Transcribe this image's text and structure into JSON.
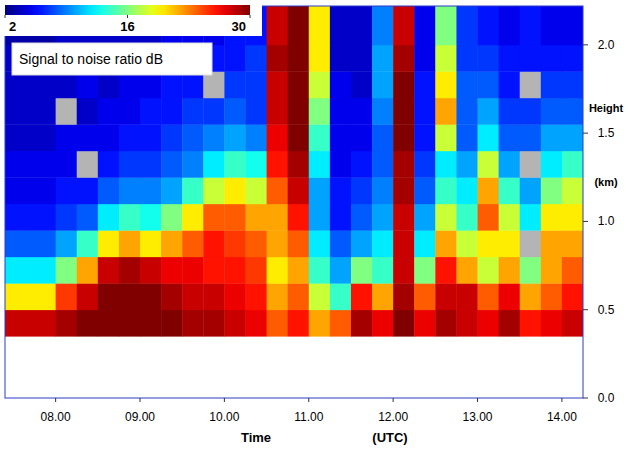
{
  "chart_data": {
    "type": "heatmap",
    "title": "Signal to noise ratio dB",
    "x_label": "Time",
    "x_unit_label": "(UTC)",
    "y_label": "Height",
    "y_unit_label": "(km)",
    "xlim": [
      7.4,
      14.25
    ],
    "xticks": [
      {
        "value": 8,
        "label": "08.00"
      },
      {
        "value": 9,
        "label": "09.00"
      },
      {
        "value": 10,
        "label": "10.00"
      },
      {
        "value": 11,
        "label": "11.00"
      },
      {
        "value": 12,
        "label": "12.00"
      },
      {
        "value": 13,
        "label": "13.00"
      },
      {
        "value": 14,
        "label": "14.00"
      }
    ],
    "ylim": [
      0,
      2.22
    ],
    "yticks": [
      {
        "value": 0,
        "label": "0.0"
      },
      {
        "value": 0.5,
        "label": "0.5"
      },
      {
        "value": 1,
        "label": "1.0"
      },
      {
        "value": 1.5,
        "label": "1.5"
      },
      {
        "value": 2,
        "label": "2.0"
      }
    ],
    "x_edges": [
      7.4,
      8.0,
      8.25,
      8.5,
      8.75,
      9.0,
      9.25,
      9.5,
      9.75,
      10.0,
      10.25,
      10.5,
      10.75,
      11.0,
      11.25,
      11.5,
      11.75,
      12.0,
      12.25,
      12.5,
      12.75,
      13.0,
      13.25,
      13.5,
      13.75,
      14.0,
      14.25
    ],
    "y_edges": [
      0.35,
      0.5,
      0.65,
      0.8,
      0.95,
      1.1,
      1.25,
      1.4,
      1.55,
      1.7,
      1.85,
      2.0,
      2.22
    ],
    "cells": [
      [
        28,
        29,
        30,
        30,
        30,
        30,
        30,
        29,
        29,
        28,
        27,
        24,
        26,
        22,
        24,
        29,
        27,
        30,
        27,
        29,
        28,
        27,
        29,
        26,
        27,
        28
      ],
      [
        20,
        25,
        28,
        30,
        30,
        30,
        29,
        28,
        28,
        27,
        26,
        22,
        24,
        18,
        14,
        26,
        22,
        29,
        24,
        28,
        28,
        24,
        27,
        22,
        24,
        26
      ],
      [
        12,
        16,
        22,
        28,
        29,
        28,
        27,
        27,
        26,
        26,
        25,
        20,
        22,
        14,
        10,
        16,
        14,
        28,
        16,
        26,
        22,
        18,
        22,
        16,
        22,
        24
      ],
      [
        8,
        10,
        14,
        20,
        22,
        20,
        22,
        24,
        26,
        25,
        24,
        22,
        24,
        12,
        8,
        10,
        12,
        28,
        12,
        22,
        18,
        20,
        20,
        null,
        22,
        22
      ],
      [
        6,
        7,
        8,
        12,
        14,
        13,
        16,
        20,
        24,
        24,
        22,
        22,
        26,
        10,
        6,
        8,
        10,
        28,
        10,
        18,
        14,
        24,
        18,
        12,
        20,
        20
      ],
      [
        5,
        6,
        6,
        8,
        9,
        9,
        10,
        14,
        18,
        20,
        18,
        24,
        28,
        10,
        6,
        7,
        9,
        29,
        8,
        14,
        12,
        22,
        14,
        10,
        16,
        18
      ],
      [
        5,
        5,
        null,
        6,
        7,
        7,
        8,
        9,
        12,
        14,
        13,
        26,
        29,
        12,
        5,
        6,
        8,
        29,
        7,
        12,
        10,
        18,
        10,
        null,
        12,
        14
      ],
      [
        4,
        5,
        5,
        5,
        6,
        6,
        7,
        8,
        9,
        10,
        9,
        27,
        30,
        14,
        5,
        5,
        8,
        30,
        6,
        18,
        8,
        12,
        8,
        8,
        10,
        10
      ],
      [
        4,
        null,
        4,
        5,
        5,
        6,
        6,
        7,
        7,
        8,
        7,
        28,
        30,
        16,
        5,
        5,
        9,
        30,
        6,
        22,
        8,
        10,
        7,
        7,
        8,
        8
      ],
      [
        4,
        4,
        5,
        4,
        5,
        5,
        6,
        6,
        null,
        7,
        7,
        28,
        30,
        18,
        5,
        4,
        10,
        30,
        6,
        20,
        8,
        8,
        6,
        null,
        7,
        7
      ],
      [
        4,
        4,
        4,
        4,
        4,
        5,
        5,
        6,
        6,
        6,
        7,
        29,
        30,
        20,
        4,
        4,
        10,
        29,
        5,
        18,
        7,
        7,
        6,
        6,
        6,
        6
      ],
      [
        3,
        4,
        4,
        4,
        4,
        4,
        5,
        5,
        5,
        6,
        6,
        28,
        30,
        20,
        4,
        4,
        9,
        28,
        5,
        16,
        7,
        6,
        5,
        6,
        5,
        5
      ]
    ],
    "colorbar": {
      "range": [
        2,
        30
      ],
      "ticks": [
        2,
        16,
        30
      ]
    }
  }
}
